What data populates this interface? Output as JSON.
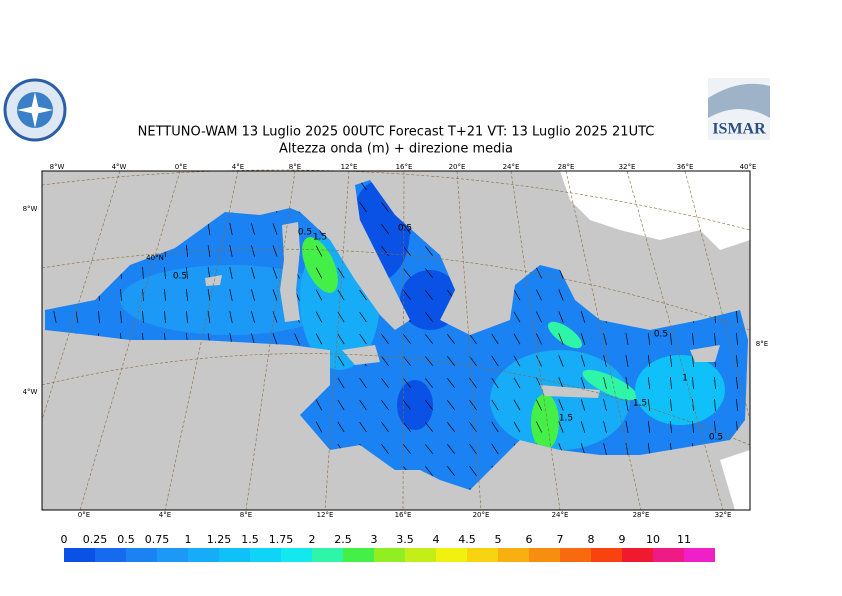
{
  "header": {
    "title": "NETTUNO-WAM  13  Luglio   2025 00UTC Forecast T+21 VT: 13  Luglio   2025 21UTC",
    "subtitle": "Altezza onda (m) + direzione media",
    "logo_text": "ISMAR"
  },
  "graticule": {
    "top": [
      "8°W",
      "4°W",
      "0°E",
      "4°E",
      "8°E",
      "12°E",
      "16°E",
      "20°E",
      "24°E",
      "28°E",
      "32°E",
      "36°E",
      "40°E"
    ],
    "bottom": [
      "0°E",
      "4°E",
      "8°E",
      "12°E",
      "16°E",
      "20°E",
      "24°E",
      "28°E",
      "32°E"
    ],
    "left": [
      "8°W",
      "40°N",
      "4°W"
    ],
    "right": [
      "8°E"
    ]
  },
  "contour_labels": [
    "0.5",
    "0.5",
    "1.5",
    "0.5",
    "1.5",
    "1",
    "0.5",
    "1.5",
    "0.5"
  ],
  "colorbar": {
    "labels": [
      "0",
      "0.25",
      "0.5",
      "0.75",
      "1",
      "1.25",
      "1.5",
      "1.75",
      "2",
      "2.5",
      "3",
      "3.5",
      "4",
      "4.5",
      "5",
      "6",
      "7",
      "8",
      "9",
      "10",
      "11"
    ],
    "colors": [
      "#0a52e6",
      "#156aee",
      "#1b82f3",
      "#1c98f6",
      "#16acf8",
      "#10c0f8",
      "#10d4f6",
      "#12e8ee",
      "#2ef5a8",
      "#44f048",
      "#90ee22",
      "#c4ee18",
      "#f2f010",
      "#f8d410",
      "#f8b010",
      "#f88e10",
      "#f86a10",
      "#f84210",
      "#f01a30",
      "#ee1a86",
      "#f020c8"
    ]
  }
}
